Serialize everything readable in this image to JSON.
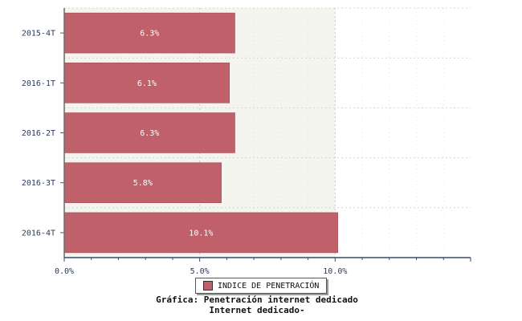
{
  "chart_data": {
    "type": "bar",
    "orientation": "horizontal",
    "categories": [
      "2015-4T",
      "2016-1T",
      "2016-2T",
      "2016-3T",
      "2016-4T"
    ],
    "series": [
      {
        "name": "INDICE DE PENETRACIÓN",
        "values": [
          6.3,
          6.1,
          6.3,
          5.8,
          10.1
        ],
        "color": "#c0606a"
      }
    ],
    "data_labels": [
      "6.3%",
      "6.1%",
      "6.3%",
      "5.8%",
      "10.1%"
    ],
    "x_ticks": [
      "0.0%",
      "5.0%",
      "10.0%"
    ],
    "xlim": [
      0,
      15
    ],
    "grid": true,
    "legend_position": "bottom"
  },
  "caption": {
    "line1": "Gráfica: Penetración internet dedicado",
    "line2": "Internet dedicado-"
  }
}
